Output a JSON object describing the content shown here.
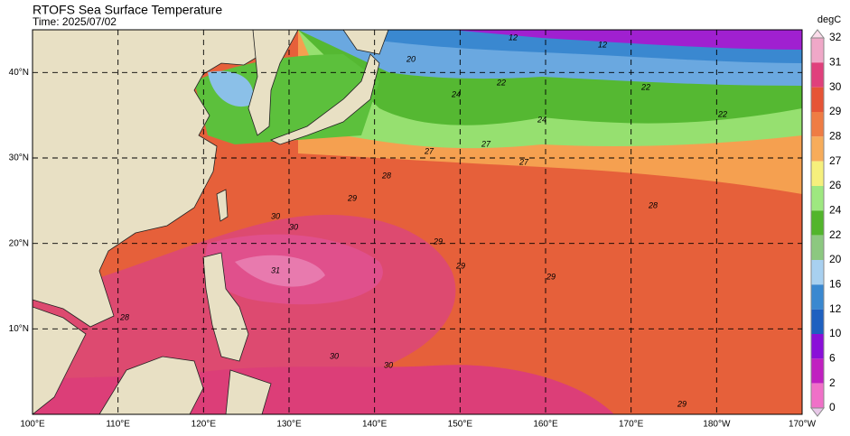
{
  "header": {
    "title": "RTOFS Sea Surface Temperature",
    "time": "Time: 2025/07/02"
  },
  "map": {
    "lon_labels": [
      "100°E",
      "110°E",
      "120°E",
      "130°E",
      "140°E",
      "150°E",
      "160°E",
      "170°E",
      "180°W",
      "170°W"
    ],
    "lat_labels": [
      "10°N",
      "20°N",
      "30°N",
      "40°N"
    ],
    "contour_labels": [
      "12",
      "12",
      "20",
      "22",
      "22",
      "24",
      "24",
      "22",
      "27",
      "27",
      "27",
      "28",
      "28",
      "29",
      "29",
      "29",
      "29",
      "30",
      "30",
      "30",
      "30",
      "31",
      "28",
      "29"
    ]
  },
  "colorbar": {
    "unit": "degC",
    "labels": [
      "32",
      "31",
      "30",
      "29",
      "28",
      "27",
      "26",
      "24",
      "22",
      "20",
      "16",
      "12",
      "10",
      "6",
      "2",
      "0"
    ]
  }
}
